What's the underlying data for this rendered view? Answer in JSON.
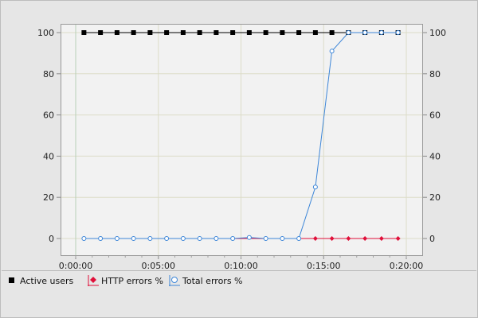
{
  "chart_data": {
    "type": "line",
    "x_labels": [
      "0:00:00",
      "0:05:00",
      "0:10:00",
      "0:15:00",
      "0:20:00"
    ],
    "xlim_seconds": [
      0,
      1200
    ],
    "ylim": [
      0,
      100
    ],
    "y_ticks": [
      0,
      20,
      40,
      60,
      80,
      100
    ],
    "y_tick_labels_left": [
      "0",
      "20",
      "40",
      "60",
      "80",
      "100"
    ],
    "y_tick_labels_right": [
      "0",
      "20",
      "40",
      "60",
      "80",
      "100"
    ],
    "grid": true,
    "legend_position": "bottom",
    "series": [
      {
        "name": "Active users",
        "color": "#000000",
        "marker": "square-filled",
        "x": [
          30,
          60,
          90,
          120,
          150,
          180,
          210,
          240,
          270,
          300,
          330,
          360,
          390,
          420,
          450,
          480,
          510,
          540,
          570,
          600,
          630,
          660,
          690,
          720,
          750,
          780,
          810,
          840,
          870,
          900,
          930,
          960,
          990,
          1020,
          1050,
          1080,
          1110,
          1140,
          1170
        ],
        "values": [
          100,
          100,
          100,
          100,
          100,
          100,
          100,
          100,
          100,
          100,
          100,
          100,
          100,
          100,
          100,
          100,
          100,
          100,
          100,
          100,
          100,
          100,
          100,
          100,
          100,
          100,
          100,
          100,
          100,
          100,
          100,
          100,
          100,
          100,
          100,
          100,
          100,
          100,
          100
        ],
        "marker_every": 2
      },
      {
        "name": "HTTP errors %",
        "color": "#e0103a",
        "marker": "diamond-filled",
        "x": [
          30,
          60,
          90,
          120,
          150,
          180,
          210,
          240,
          270,
          300,
          330,
          360,
          390,
          420,
          450,
          480,
          510,
          540,
          570,
          600,
          630,
          660,
          690,
          720,
          750,
          780,
          810,
          840,
          870,
          900,
          930,
          960,
          990,
          1020,
          1050,
          1080,
          1110,
          1140,
          1170
        ],
        "values": [
          0,
          0,
          0,
          0,
          0,
          0,
          0,
          0,
          0,
          0,
          0,
          0,
          0,
          0,
          0,
          0,
          0,
          0,
          0,
          0,
          0,
          0,
          0,
          0,
          0,
          0,
          0,
          0,
          0,
          0,
          0,
          0,
          0,
          0,
          0,
          0,
          0,
          0,
          0
        ],
        "marker_from_x": 870,
        "marker_every": 2
      },
      {
        "name": "Total errors %",
        "color": "#3d86d8",
        "marker": "circle-open",
        "x": [
          30,
          90,
          150,
          210,
          270,
          330,
          390,
          450,
          510,
          570,
          630,
          690,
          750,
          810,
          870,
          930,
          990,
          1050,
          1110,
          1170
        ],
        "values": [
          0,
          0,
          0,
          0,
          0,
          0,
          0,
          0,
          0,
          0,
          0.5,
          0,
          0,
          0,
          25,
          91,
          100,
          100,
          100,
          100
        ]
      }
    ]
  },
  "legend": {
    "items": [
      {
        "label": "Active users"
      },
      {
        "label": "HTTP errors %"
      },
      {
        "label": "Total errors %"
      }
    ]
  }
}
